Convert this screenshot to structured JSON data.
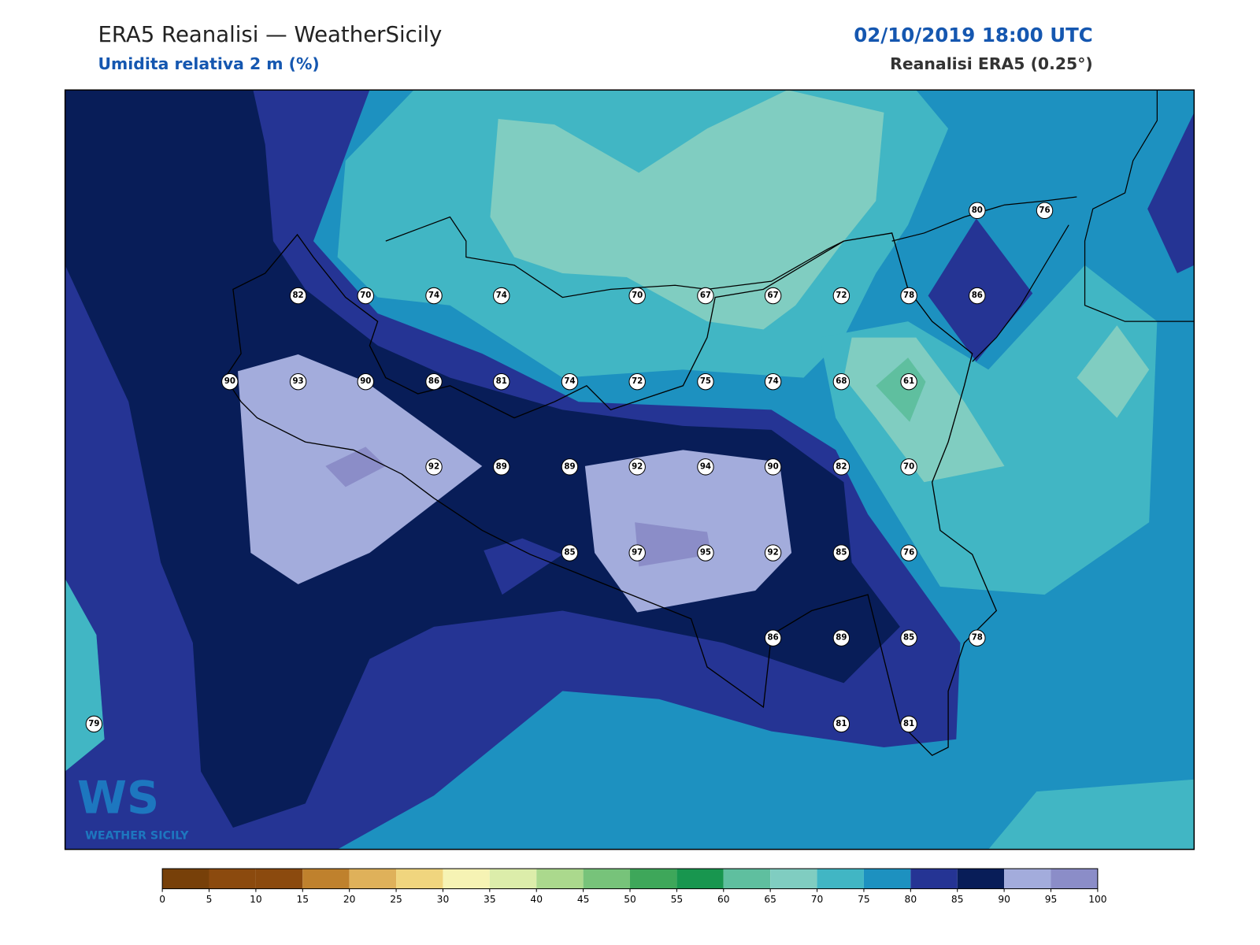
{
  "header": {
    "title": "ERA5 Reanalisi — WeatherSicily",
    "subtitle": "Umidita relativa 2 m (%)",
    "datetime": "02/10/2019 18:00 UTC",
    "source": "Reanalisi ERA5 (0.25°)"
  },
  "logo": {
    "mark": "WS",
    "text": "WEATHER SICILY"
  },
  "stations": [
    80,
    76,
    82,
    70,
    74,
    74,
    70,
    67,
    67,
    72,
    78,
    86,
    90,
    93,
    90,
    86,
    81,
    74,
    72,
    75,
    74,
    68,
    61,
    92,
    89,
    89,
    92,
    94,
    90,
    82,
    70,
    85,
    97,
    95,
    92,
    85,
    76,
    86,
    89,
    85,
    78,
    79,
    81,
    81
  ],
  "colorbar": {
    "ticks": [
      0,
      5,
      10,
      15,
      20,
      25,
      30,
      35,
      40,
      45,
      50,
      55,
      60,
      65,
      70,
      75,
      80,
      85,
      90,
      95,
      100
    ],
    "colors": [
      "#774009",
      "#8b4a0e",
      "#8b4a0e",
      "#bf812d",
      "#dfb15a",
      "#f0d57e",
      "#f6f3b4",
      "#dcedaa",
      "#abd98d",
      "#77c37a",
      "#3ea75a",
      "#18964f",
      "#5fbf9f",
      "#80cdc1",
      "#41b6c4",
      "#1d91c0",
      "#253494",
      "#081d58",
      "#a3acdc",
      "#8b8dc8"
    ]
  }
}
